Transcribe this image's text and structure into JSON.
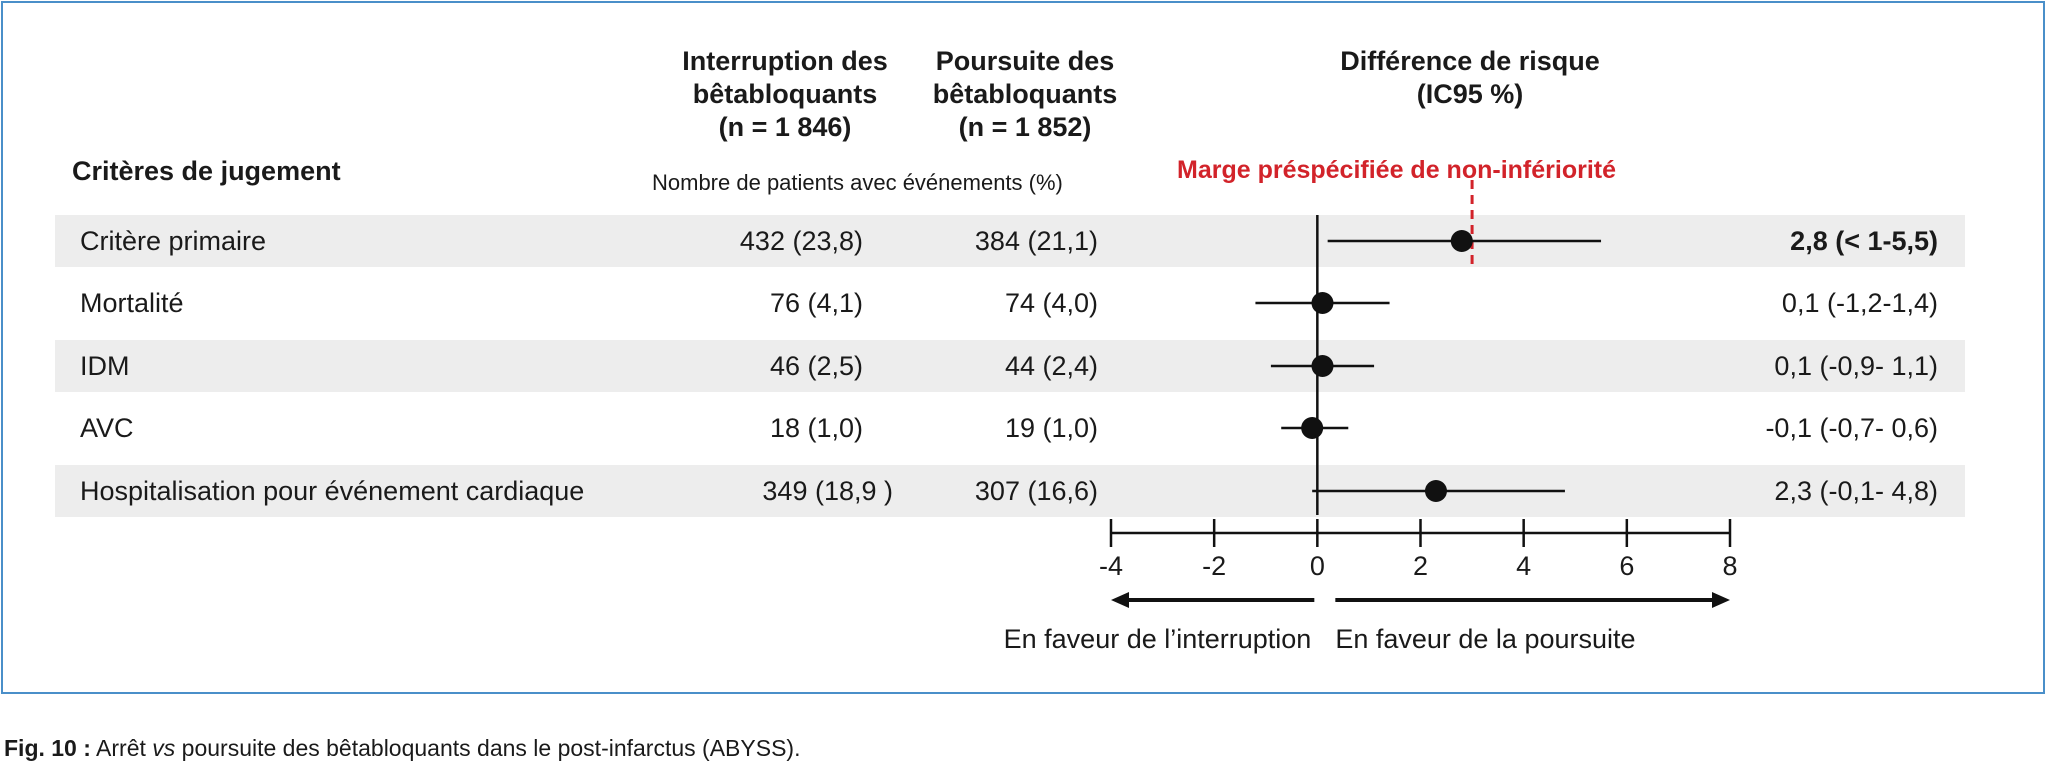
{
  "headers": {
    "criteria": "Critères de jugement",
    "interruption": [
      "Interruption des",
      "bêtabloquants",
      "(n = 1 846)"
    ],
    "poursuite": [
      "Poursuite des",
      "bêtabloquants",
      "(n = 1 852)"
    ],
    "difference": [
      "Différence de risque",
      "(IC95 %)"
    ],
    "subheader": "Nombre de patients avec événements (%)",
    "margin_label": "Marge préspécifiée de non-infériorité"
  },
  "rows": [
    {
      "label": "Critère primaire",
      "interruption": "432 (23,8)",
      "poursuite": "384 (21,1)",
      "ci_text": "2,8  (< 1-5,5)",
      "bold": true
    },
    {
      "label": "Mortalité",
      "interruption": "76 (4,1)",
      "poursuite": "74 (4,0)",
      "ci_text": "0,1  (-1,2-1,4)",
      "bold": false
    },
    {
      "label": "IDM",
      "interruption": "46 (2,5)",
      "poursuite": "44 (2,4)",
      "ci_text": "0,1  (-0,9- 1,1)",
      "bold": false
    },
    {
      "label": "AVC",
      "interruption": "18 (1,0)",
      "poursuite": "19 (1,0)",
      "ci_text": "-0,1  (-0,7- 0,6)",
      "bold": false
    },
    {
      "label": "Hospitalisation pour événement cardiaque",
      "interruption": "349 (18,9  )",
      "poursuite": "307 (16,6)",
      "ci_text": "2,3  (-0,1- 4,8)",
      "bold": false
    }
  ],
  "chart_data": {
    "type": "forest",
    "x_ticks": [
      "-4",
      "-2",
      "0",
      "2",
      "4",
      "6",
      "8"
    ],
    "xlim": [
      -4,
      8
    ],
    "reference_line": 0,
    "margin_value": 3,
    "points": [
      {
        "label": "Critère primaire",
        "value": 2.8,
        "lower": 0.2,
        "upper": 5.5
      },
      {
        "label": "Mortalité",
        "value": 0.1,
        "lower": -1.2,
        "upper": 1.4
      },
      {
        "label": "IDM",
        "value": 0.1,
        "lower": -0.9,
        "upper": 1.1
      },
      {
        "label": "AVC",
        "value": -0.1,
        "lower": -0.7,
        "upper": 0.6
      },
      {
        "label": "Hospitalisation pour événement cardiaque",
        "value": 2.3,
        "lower": -0.1,
        "upper": 4.8
      }
    ],
    "left_arrow_label": "En faveur de l’interruption",
    "right_arrow_label": "En faveur de la poursuite",
    "colors": {
      "point": "#111111",
      "margin": "#d2232a",
      "band": "#ededed"
    }
  },
  "caption": {
    "label": "Fig. 10 :",
    "pre": "Arrêt ",
    "italic": "vs",
    "post": " poursuite des bêtabloquants dans le post-infarctus (ABYSS)."
  }
}
